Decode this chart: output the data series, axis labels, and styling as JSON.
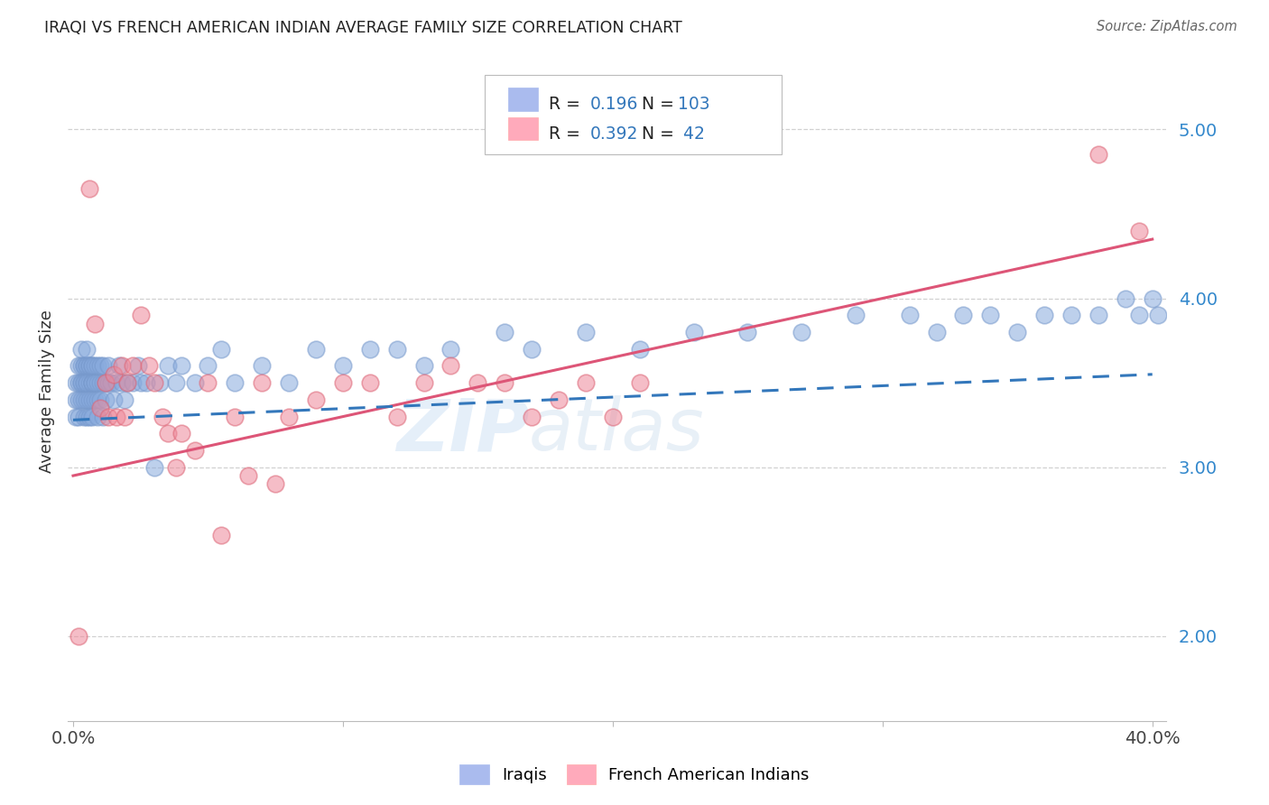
{
  "title": "IRAQI VS FRENCH AMERICAN INDIAN AVERAGE FAMILY SIZE CORRELATION CHART",
  "source": "Source: ZipAtlas.com",
  "ylabel": "Average Family Size",
  "xlim": [
    -0.002,
    0.405
  ],
  "ylim": [
    1.5,
    5.4
  ],
  "yticks": [
    2.0,
    3.0,
    4.0,
    5.0
  ],
  "xticks": [
    0.0,
    0.1,
    0.2,
    0.3,
    0.4
  ],
  "xticklabels": [
    "0.0%",
    "",
    "",
    "",
    "40.0%"
  ],
  "blue_scatter_color": "#88aadd",
  "pink_scatter_color": "#ee8899",
  "blue_edge_color": "#7799cc",
  "pink_edge_color": "#dd6677",
  "trend_blue_color": "#3377bb",
  "trend_pink_color": "#dd5577",
  "legend_blue_patch": "#aabbee",
  "legend_pink_patch": "#ffaabb",
  "ytick_color": "#3388cc",
  "watermark_color": "#bbddf8",
  "iraqis_x": [
    0.001,
    0.001,
    0.001,
    0.002,
    0.002,
    0.002,
    0.002,
    0.003,
    0.003,
    0.003,
    0.003,
    0.003,
    0.004,
    0.004,
    0.004,
    0.004,
    0.004,
    0.004,
    0.005,
    0.005,
    0.005,
    0.005,
    0.005,
    0.005,
    0.005,
    0.006,
    0.006,
    0.006,
    0.006,
    0.006,
    0.007,
    0.007,
    0.007,
    0.007,
    0.007,
    0.007,
    0.007,
    0.008,
    0.008,
    0.008,
    0.008,
    0.009,
    0.009,
    0.009,
    0.009,
    0.01,
    0.01,
    0.01,
    0.011,
    0.011,
    0.011,
    0.012,
    0.012,
    0.013,
    0.013,
    0.014,
    0.015,
    0.016,
    0.017,
    0.018,
    0.019,
    0.02,
    0.022,
    0.024,
    0.025,
    0.027,
    0.03,
    0.032,
    0.035,
    0.038,
    0.04,
    0.045,
    0.05,
    0.055,
    0.06,
    0.07,
    0.08,
    0.09,
    0.1,
    0.11,
    0.12,
    0.13,
    0.14,
    0.16,
    0.17,
    0.19,
    0.21,
    0.23,
    0.25,
    0.27,
    0.29,
    0.31,
    0.32,
    0.33,
    0.34,
    0.35,
    0.36,
    0.37,
    0.38,
    0.39,
    0.395,
    0.4,
    0.402
  ],
  "iraqis_y": [
    3.4,
    3.5,
    3.3,
    3.6,
    3.4,
    3.5,
    3.3,
    3.5,
    3.6,
    3.4,
    3.7,
    3.5,
    3.6,
    3.4,
    3.5,
    3.6,
    3.3,
    3.5,
    3.6,
    3.4,
    3.5,
    3.6,
    3.3,
    3.5,
    3.7,
    3.6,
    3.4,
    3.5,
    3.6,
    3.3,
    3.5,
    3.6,
    3.4,
    3.5,
    3.6,
    3.3,
    3.5,
    3.6,
    3.4,
    3.5,
    3.5,
    3.4,
    3.5,
    3.6,
    3.3,
    3.5,
    3.6,
    3.4,
    3.5,
    3.3,
    3.6,
    3.5,
    3.4,
    3.5,
    3.6,
    3.5,
    3.4,
    3.5,
    3.6,
    3.5,
    3.4,
    3.5,
    3.5,
    3.6,
    3.5,
    3.5,
    3.0,
    3.5,
    3.6,
    3.5,
    3.6,
    3.5,
    3.6,
    3.7,
    3.5,
    3.6,
    3.5,
    3.7,
    3.6,
    3.7,
    3.7,
    3.6,
    3.7,
    3.8,
    3.7,
    3.8,
    3.7,
    3.8,
    3.8,
    3.8,
    3.9,
    3.9,
    3.8,
    3.9,
    3.9,
    3.8,
    3.9,
    3.9,
    3.9,
    4.0,
    3.9,
    4.0,
    3.9
  ],
  "french_x": [
    0.002,
    0.006,
    0.008,
    0.01,
    0.012,
    0.013,
    0.015,
    0.016,
    0.018,
    0.019,
    0.02,
    0.022,
    0.025,
    0.028,
    0.03,
    0.033,
    0.035,
    0.038,
    0.04,
    0.045,
    0.05,
    0.055,
    0.06,
    0.065,
    0.07,
    0.075,
    0.08,
    0.09,
    0.1,
    0.11,
    0.12,
    0.13,
    0.14,
    0.15,
    0.16,
    0.17,
    0.18,
    0.19,
    0.2,
    0.21,
    0.38,
    0.395
  ],
  "french_y": [
    2.0,
    4.65,
    3.85,
    3.35,
    3.5,
    3.3,
    3.55,
    3.3,
    3.6,
    3.3,
    3.5,
    3.6,
    3.9,
    3.6,
    3.5,
    3.3,
    3.2,
    3.0,
    3.2,
    3.1,
    3.5,
    2.6,
    3.3,
    2.95,
    3.5,
    2.9,
    3.3,
    3.4,
    3.5,
    3.5,
    3.3,
    3.5,
    3.6,
    3.5,
    3.5,
    3.3,
    3.4,
    3.5,
    3.3,
    3.5,
    4.85,
    4.4
  ],
  "trend_iraqi_x0": 0.0,
  "trend_iraqi_y0": 3.28,
  "trend_iraqi_x1": 0.4,
  "trend_iraqi_y1": 3.55,
  "trend_french_x0": 0.0,
  "trend_french_y0": 2.95,
  "trend_french_x1": 0.4,
  "trend_french_y1": 4.35
}
